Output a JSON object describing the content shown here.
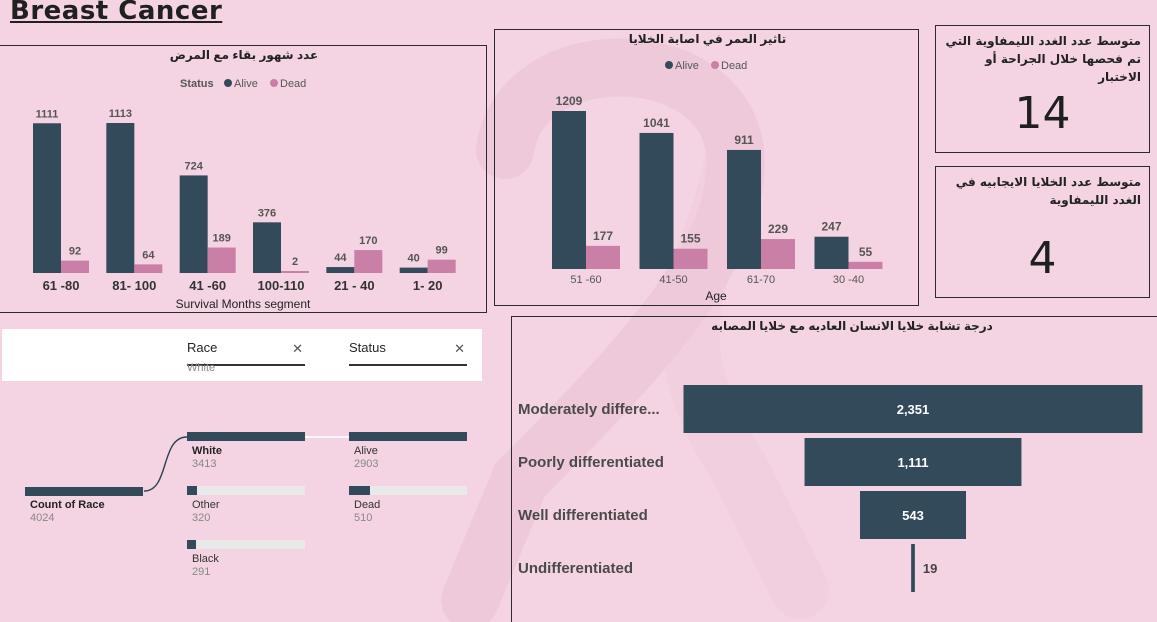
{
  "page_title": "Breast Cancer",
  "colors": {
    "alive": "#334a5b",
    "dead": "#c97fa6",
    "track": "#e9e9e9",
    "accent": "#334a5b"
  },
  "chart_data": [
    {
      "id": "survival",
      "type": "bar",
      "title": "عدد شهور بقاء مع المرض",
      "legend_title": "Status",
      "legend_position": "top",
      "xlabel": "Survival Months segment",
      "categories": [
        "61 -80",
        "81- 100",
        "41 -60",
        "100-110",
        "21 - 40",
        "1- 20"
      ],
      "series": [
        {
          "name": "Alive",
          "values": [
            1111,
            1113,
            724,
            376,
            44,
            40
          ]
        },
        {
          "name": "Dead",
          "values": [
            92,
            64,
            189,
            2,
            170,
            99
          ]
        }
      ],
      "ylim": [
        0,
        1113
      ]
    },
    {
      "id": "age",
      "type": "bar",
      "title": "تاثير العمر في اصابة الخلايا",
      "legend_position": "top",
      "xlabel": "Age",
      "categories": [
        "51 -60",
        "41-50",
        "61-70",
        "30 -40"
      ],
      "series": [
        {
          "name": "Alive",
          "values": [
            1209,
            1041,
            911,
            247
          ]
        },
        {
          "name": "Dead",
          "values": [
            177,
            155,
            229,
            55
          ]
        }
      ],
      "ylim": [
        0,
        1209
      ]
    },
    {
      "id": "differentiation",
      "type": "bar",
      "orientation": "funnel",
      "title": "درجة تشابة خلايا الانسان العاديه مع خلايا المصابه",
      "categories": [
        "Moderately differe...",
        "Poorly differentiated",
        "Well differentiated",
        "Undifferentiated"
      ],
      "values": [
        2351,
        1111,
        543,
        19
      ],
      "value_labels": [
        "2,351",
        "1,111",
        "543",
        "19"
      ]
    }
  ],
  "kpis": [
    {
      "title": "متوسط عدد الغدد الليمفاوية التي تم فحصها خلال الجراحة أو الاختبار",
      "value": "14"
    },
    {
      "title": "متوسط عدد الخلايا الايجابيه في الغدد الليمفاوية",
      "value": "4"
    }
  ],
  "filters": [
    {
      "name": "Race",
      "selected": "White"
    },
    {
      "name": "Status",
      "selected": ""
    }
  ],
  "decomposition_tree": {
    "root": {
      "label": "Count of Race",
      "value": 4024
    },
    "race": [
      {
        "label": "White",
        "value": 3413
      },
      {
        "label": "Other",
        "value": 320
      },
      {
        "label": "Black",
        "value": 291
      }
    ],
    "status": [
      {
        "label": "Alive",
        "value": 2903
      },
      {
        "label": "Dead",
        "value": 510
      }
    ]
  }
}
